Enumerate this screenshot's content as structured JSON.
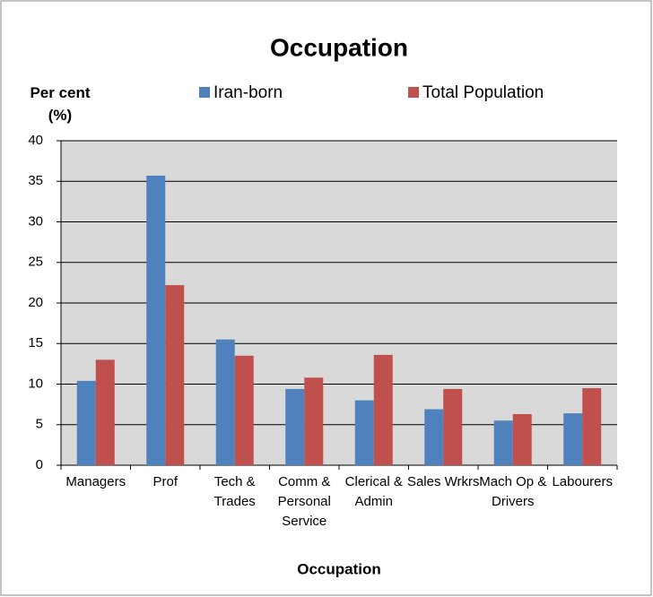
{
  "chart_data": {
    "type": "bar",
    "title": "Occupation",
    "x_label": "Occupation",
    "y_label": "Per cent (%)",
    "categories": [
      "Managers",
      "Prof",
      "Tech & Trades",
      "Comm & Personal Service",
      "Clerical & Admin",
      "Sales Wrkrs",
      "Mach Op & Drivers",
      "Labourers"
    ],
    "series": [
      {
        "name": "Iran-born",
        "color": "#4f81bd",
        "values": [
          10.4,
          35.7,
          15.5,
          9.4,
          8.0,
          6.9,
          5.5,
          6.4
        ]
      },
      {
        "name": "Total Population",
        "color": "#c0504d",
        "values": [
          13.0,
          22.2,
          13.5,
          10.8,
          13.6,
          9.4,
          6.3,
          9.5
        ]
      }
    ],
    "ylim": [
      0,
      40
    ],
    "yticks": [
      0,
      5,
      10,
      15,
      20,
      25,
      30,
      35,
      40
    ],
    "grid": true,
    "legend": "top"
  }
}
